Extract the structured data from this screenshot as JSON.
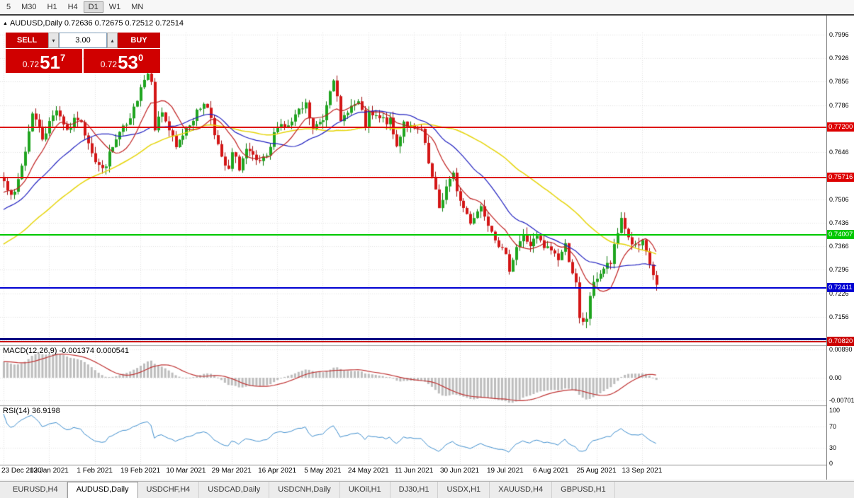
{
  "toolbar": {
    "timeframes": [
      "5",
      "M30",
      "H1",
      "H4",
      "D1",
      "W1",
      "MN"
    ],
    "active": "D1"
  },
  "chart": {
    "header": {
      "symbol": "AUDUSD,Daily",
      "open": "0.72636",
      "high": "0.72675",
      "low": "0.72512",
      "close": "0.72514"
    },
    "trade_panel": {
      "sell_label": "SELL",
      "buy_label": "BUY",
      "volume": "3.00",
      "sell_price": {
        "prefix": "0.72",
        "big": "51",
        "sup": "7"
      },
      "buy_price": {
        "prefix": "0.72",
        "big": "53",
        "sup": "0"
      }
    },
    "price_axis": {
      "ticks": [
        "0.7996",
        "0.7926",
        "0.7856",
        "0.7786",
        "0.7716",
        "0.7646",
        "0.7576",
        "0.7506",
        "0.7436",
        "0.7366",
        "0.7296",
        "0.7226",
        "0.7156",
        "0.7086"
      ]
    },
    "levels": [
      {
        "name": "resistance-1",
        "price": 0.772,
        "label": "0.77200",
        "color": "#dd0000",
        "width": 2
      },
      {
        "name": "resistance-2",
        "price": 0.75716,
        "label": "0.75716",
        "color": "#dd0000",
        "width": 2
      },
      {
        "name": "pivot-green",
        "price": 0.74007,
        "label": "0.74007",
        "color": "#00c800",
        "width": 2
      },
      {
        "name": "support-blue",
        "price": 0.72411,
        "label": "0.72411",
        "color": "#0000d2",
        "width": 2
      },
      {
        "name": "support-navy",
        "price": 0.709,
        "label": null,
        "color": "#000080",
        "width": 3
      },
      {
        "name": "support-red",
        "price": 0.7082,
        "label": "0.70820",
        "color": "#cc0000",
        "width": 2
      }
    ]
  },
  "macd": {
    "label": "MACD(12,26,9) -0.001374 0.000541",
    "axis": [
      "0.00890",
      "0.00",
      "-0.00701"
    ]
  },
  "rsi": {
    "label": "RSI(14) 36.9198",
    "axis": [
      "100",
      "70",
      "30",
      "0"
    ]
  },
  "date_axis": [
    "23 Dec 2020",
    "13 Jan 2021",
    "1 Feb 2021",
    "19 Feb 2021",
    "10 Mar 2021",
    "29 Mar 2021",
    "16 Apr 2021",
    "5 May 2021",
    "24 May 2021",
    "11 Jun 2021",
    "30 Jun 2021",
    "19 Jul 2021",
    "6 Aug 2021",
    "25 Aug 2021",
    "13 Sep 2021"
  ],
  "tabs": {
    "items": [
      "EURUSD,H4",
      "AUDUSD,Daily",
      "USDCHF,H4",
      "USDCAD,Daily",
      "USDCNH,Daily",
      "UKOil,H1",
      "DJ30,H1",
      "USDX,H1",
      "XAUUSD,H4",
      "GBPUSD,H1"
    ],
    "active": "AUDUSD,Daily"
  },
  "style": {
    "candle_up": "#1fa51f",
    "candle_up_wick": "#0c7a0c",
    "candle_down": "#d41616",
    "candle_down_wick": "#9e0f0f",
    "macd_hist": "#bdbdbd",
    "macd_signal": "#c03535",
    "rsi_line": "#3f8fcf",
    "grid": "#e2e2e2",
    "separator": "#999999",
    "trade_red": "#c80000",
    "badge_green": "#00c800",
    "badge_blue": "#0000d2"
  },
  "chart_data": {
    "type": "candlestick",
    "symbol": "AUDUSD",
    "timeframe": "Daily",
    "last_bar": {
      "open": 0.72636,
      "high": 0.72675,
      "low": 0.72512,
      "close": 0.72514
    },
    "price_axis_range": [
      0.705,
      0.801
    ],
    "x_dates": [
      "23 Dec 2020",
      "13 Jan 2021",
      "1 Feb 2021",
      "19 Feb 2021",
      "10 Mar 2021",
      "29 Mar 2021",
      "16 Apr 2021",
      "5 May 2021",
      "24 May 2021",
      "11 Jun 2021",
      "30 Jun 2021",
      "19 Jul 2021",
      "6 Aug 2021",
      "25 Aug 2021",
      "13 Sep 2021"
    ],
    "candles_per_tick": 13,
    "candle_count": 187,
    "close_path_anchors": [
      [
        0,
        0.756
      ],
      [
        3,
        0.7516
      ],
      [
        6,
        0.765
      ],
      [
        8,
        0.7768
      ],
      [
        11,
        0.769
      ],
      [
        13,
        0.7732
      ],
      [
        15,
        0.7778
      ],
      [
        18,
        0.7712
      ],
      [
        21,
        0.7748
      ],
      [
        24,
        0.7682
      ],
      [
        26,
        0.7622
      ],
      [
        28,
        0.7592
      ],
      [
        31,
        0.766
      ],
      [
        33,
        0.7702
      ],
      [
        36,
        0.7736
      ],
      [
        39,
        0.7848
      ],
      [
        41,
        0.7882
      ],
      [
        42,
        0.7868
      ],
      [
        43,
        0.7722
      ],
      [
        45,
        0.7768
      ],
      [
        47,
        0.7712
      ],
      [
        49,
        0.7656
      ],
      [
        52,
        0.7722
      ],
      [
        55,
        0.7762
      ],
      [
        57,
        0.7798
      ],
      [
        59,
        0.7752
      ],
      [
        62,
        0.7622
      ],
      [
        64,
        0.7588
      ],
      [
        65,
        0.7642
      ],
      [
        67,
        0.7602
      ],
      [
        69,
        0.7652
      ],
      [
        72,
        0.7614
      ],
      [
        75,
        0.7624
      ],
      [
        78,
        0.7734
      ],
      [
        81,
        0.772
      ],
      [
        83,
        0.7752
      ],
      [
        86,
        0.7786
      ],
      [
        88,
        0.7712
      ],
      [
        91,
        0.7746
      ],
      [
        93,
        0.784
      ],
      [
        94,
        0.7872
      ],
      [
        96,
        0.773
      ],
      [
        98,
        0.7776
      ],
      [
        101,
        0.7792
      ],
      [
        103,
        0.7726
      ],
      [
        104,
        0.7756
      ],
      [
        107,
        0.7744
      ],
      [
        110,
        0.7736
      ],
      [
        112,
        0.7662
      ],
      [
        114,
        0.774
      ],
      [
        117,
        0.7708
      ],
      [
        119,
        0.7712
      ],
      [
        121,
        0.761
      ],
      [
        124,
        0.748
      ],
      [
        126,
        0.7542
      ],
      [
        128,
        0.7576
      ],
      [
        130,
        0.75
      ],
      [
        133,
        0.7442
      ],
      [
        136,
        0.7486
      ],
      [
        138,
        0.744
      ],
      [
        140,
        0.7396
      ],
      [
        143,
        0.733
      ],
      [
        144,
        0.7302
      ],
      [
        146,
        0.7366
      ],
      [
        148,
        0.7396
      ],
      [
        150,
        0.737
      ],
      [
        152,
        0.7392
      ],
      [
        154,
        0.736
      ],
      [
        156,
        0.7356
      ],
      [
        158,
        0.733
      ],
      [
        160,
        0.7368
      ],
      [
        162,
        0.7292
      ],
      [
        163,
        0.725
      ],
      [
        164,
        0.7144
      ],
      [
        165,
        0.7134
      ],
      [
        166,
        0.7152
      ],
      [
        167,
        0.7222
      ],
      [
        169,
        0.7276
      ],
      [
        171,
        0.73
      ],
      [
        173,
        0.7316
      ],
      [
        175,
        0.7404
      ],
      [
        176,
        0.7452
      ],
      [
        178,
        0.7392
      ],
      [
        180,
        0.7362
      ],
      [
        182,
        0.7372
      ],
      [
        184,
        0.7312
      ],
      [
        186,
        0.72514
      ]
    ],
    "moving_averages": [
      {
        "period": 10,
        "color": "#c02020"
      },
      {
        "period": 24,
        "color": "#2020c0"
      },
      {
        "period": 52,
        "color": "#e6d50a"
      }
    ],
    "horizontal_levels": [
      0.772,
      0.75716,
      0.74007,
      0.72411,
      0.709,
      0.7082
    ],
    "macd": {
      "fast": 12,
      "slow": 26,
      "signal": 9,
      "value": -0.001374,
      "signal_value": 0.000541,
      "axis_max": 0.0089,
      "axis_min": -0.00701
    },
    "rsi": {
      "period": 14,
      "value": 36.9198,
      "levels": [
        70,
        30
      ],
      "axis": [
        100,
        70,
        30,
        0
      ]
    }
  }
}
